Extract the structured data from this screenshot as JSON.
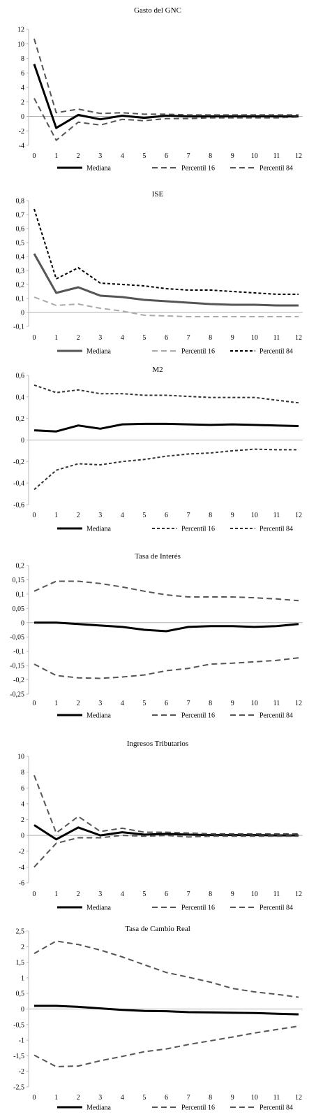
{
  "chart_data": [
    {
      "type": "line",
      "title": "Gasto del GNC",
      "x": [
        0,
        1,
        2,
        3,
        4,
        5,
        6,
        7,
        8,
        9,
        10,
        11,
        12
      ],
      "ylim": [
        -4,
        12
      ],
      "yticks": [
        -4,
        -2,
        0,
        2,
        4,
        6,
        8,
        10,
        12
      ],
      "ytick_labels": [
        "-4",
        "-2",
        "0",
        "2",
        "4",
        "6",
        "8",
        "10",
        "12"
      ],
      "series": [
        {
          "name": "Mediana",
          "style": "solid",
          "color": "#000000",
          "values": [
            7.2,
            -1.6,
            0.2,
            -0.4,
            0.1,
            -0.2,
            0.1,
            0.0,
            0.0,
            0.0,
            0.0,
            0.0,
            0.0
          ]
        },
        {
          "name": "Percentil 16",
          "style": "dashed",
          "color": "#555555",
          "values": [
            2.5,
            -3.3,
            -0.8,
            -1.2,
            -0.4,
            -0.6,
            -0.3,
            -0.3,
            -0.2,
            -0.2,
            -0.2,
            -0.2,
            -0.1
          ]
        },
        {
          "name": "Percentil 84",
          "style": "dashed",
          "color": "#555555",
          "values": [
            10.7,
            0.5,
            1.0,
            0.4,
            0.5,
            0.3,
            0.3,
            0.2,
            0.2,
            0.2,
            0.2,
            0.2,
            0.2
          ]
        }
      ]
    },
    {
      "type": "line",
      "title": "ISE",
      "x": [
        0,
        1,
        2,
        3,
        4,
        5,
        6,
        7,
        8,
        9,
        10,
        11,
        12
      ],
      "ylim": [
        -0.1,
        0.8
      ],
      "yticks": [
        -0.1,
        0,
        0.1,
        0.2,
        0.3,
        0.4,
        0.5,
        0.6,
        0.7,
        0.8
      ],
      "ytick_labels": [
        "-0,1",
        "0",
        "0,1",
        "0,2",
        "0,3",
        "0,4",
        "0,5",
        "0,6",
        "0,7",
        "0,8"
      ],
      "series": [
        {
          "name": "Mediana",
          "style": "solid",
          "color": "#555555",
          "values": [
            0.42,
            0.14,
            0.18,
            0.12,
            0.11,
            0.09,
            0.08,
            0.07,
            0.06,
            0.055,
            0.055,
            0.05,
            0.05
          ]
        },
        {
          "name": "Percentil 16",
          "style": "dashed",
          "color": "#aaaaaa",
          "values": [
            0.11,
            0.05,
            0.06,
            0.03,
            0.01,
            -0.02,
            -0.025,
            -0.03,
            -0.03,
            -0.03,
            -0.03,
            -0.03,
            -0.03
          ]
        },
        {
          "name": "Percentil 84",
          "style": "dotted",
          "color": "#000000",
          "values": [
            0.74,
            0.24,
            0.32,
            0.21,
            0.2,
            0.19,
            0.17,
            0.16,
            0.16,
            0.15,
            0.14,
            0.13,
            0.13
          ]
        }
      ]
    },
    {
      "type": "line",
      "title": "M2",
      "x": [
        0,
        1,
        2,
        3,
        4,
        5,
        6,
        7,
        8,
        9,
        10,
        11,
        12
      ],
      "ylim": [
        -0.6,
        0.6
      ],
      "yticks": [
        -0.6,
        -0.4,
        -0.2,
        0,
        0.2,
        0.4,
        0.6
      ],
      "ytick_labels": [
        "-0,6",
        "-0,4",
        "-0,2",
        "0",
        "0,2",
        "0,4",
        "0,6"
      ],
      "series": [
        {
          "name": "Mediana",
          "style": "solid",
          "color": "#000000",
          "values": [
            0.09,
            0.08,
            0.135,
            0.105,
            0.145,
            0.15,
            0.15,
            0.145,
            0.14,
            0.145,
            0.14,
            0.135,
            0.13
          ]
        },
        {
          "name": "Percentil 16",
          "style": "dotted",
          "color": "#333333",
          "values": [
            -0.46,
            -0.28,
            -0.22,
            -0.23,
            -0.2,
            -0.18,
            -0.15,
            -0.13,
            -0.12,
            -0.1,
            -0.085,
            -0.09,
            -0.09
          ]
        },
        {
          "name": "Percentil 84",
          "style": "dotted",
          "color": "#333333",
          "values": [
            0.51,
            0.44,
            0.465,
            0.43,
            0.43,
            0.415,
            0.415,
            0.405,
            0.395,
            0.395,
            0.395,
            0.37,
            0.345
          ]
        }
      ]
    },
    {
      "type": "line",
      "title": "Tasa de Interés",
      "x": [
        0,
        1,
        2,
        3,
        4,
        5,
        6,
        7,
        8,
        9,
        10,
        11,
        12
      ],
      "ylim": [
        -0.25,
        0.2
      ],
      "yticks": [
        -0.25,
        -0.2,
        -0.15,
        -0.1,
        -0.05,
        0,
        0.05,
        0.1,
        0.15,
        0.2
      ],
      "ytick_labels": [
        "-0,25",
        "-0,2",
        "-0,15",
        "-0,1",
        "-0,05",
        "0",
        "0,05",
        "0,1",
        "0,15",
        "0,2"
      ],
      "series": [
        {
          "name": "Mediana",
          "style": "solid",
          "color": "#000000",
          "values": [
            0.0,
            0.0,
            -0.005,
            -0.01,
            -0.015,
            -0.025,
            -0.03,
            -0.015,
            -0.012,
            -0.012,
            -0.015,
            -0.012,
            -0.005
          ]
        },
        {
          "name": "Percentil 16",
          "style": "dashed",
          "color": "#555555",
          "values": [
            -0.145,
            -0.185,
            -0.193,
            -0.195,
            -0.19,
            -0.183,
            -0.168,
            -0.16,
            -0.145,
            -0.142,
            -0.137,
            -0.132,
            -0.123
          ]
        },
        {
          "name": "Percentil 84",
          "style": "dashed",
          "color": "#555555",
          "values": [
            0.11,
            0.145,
            0.145,
            0.137,
            0.125,
            0.11,
            0.097,
            0.09,
            0.09,
            0.09,
            0.087,
            0.083,
            0.077
          ]
        }
      ]
    },
    {
      "type": "line",
      "title": "Ingresos Tributarios",
      "x": [
        0,
        1,
        2,
        3,
        4,
        5,
        6,
        7,
        8,
        9,
        10,
        11,
        12
      ],
      "ylim": [
        -6,
        10
      ],
      "yticks": [
        -6,
        -4,
        -2,
        0,
        2,
        4,
        6,
        8,
        10
      ],
      "ytick_labels": [
        "-6",
        "-4",
        "-2",
        "0",
        "2",
        "4",
        "6",
        "8",
        "10"
      ],
      "series": [
        {
          "name": "Mediana",
          "style": "solid",
          "color": "#000000",
          "values": [
            1.3,
            -0.5,
            1.0,
            0.0,
            0.4,
            0.1,
            0.2,
            0.1,
            0.05,
            0.05,
            0.05,
            0.0,
            0.0
          ]
        },
        {
          "name": "Percentil 16",
          "style": "dashed",
          "color": "#555555",
          "values": [
            -4.0,
            -1.0,
            -0.3,
            -0.3,
            0.0,
            -0.1,
            0.0,
            -0.2,
            -0.1,
            -0.1,
            -0.1,
            -0.1,
            -0.1
          ]
        },
        {
          "name": "Percentil 84",
          "style": "dashed",
          "color": "#555555",
          "values": [
            7.6,
            0.3,
            2.4,
            0.5,
            0.9,
            0.4,
            0.4,
            0.3,
            0.2,
            0.2,
            0.2,
            0.2,
            0.2
          ]
        }
      ]
    },
    {
      "type": "line",
      "title": "Tasa de Cambio Real",
      "x": [
        0,
        1,
        2,
        3,
        4,
        5,
        6,
        7,
        8,
        9,
        10,
        11,
        12
      ],
      "ylim": [
        -2.5,
        2.5
      ],
      "yticks": [
        -2.5,
        -2,
        -1.5,
        -1,
        -0.5,
        0,
        0.5,
        1,
        1.5,
        2,
        2.5
      ],
      "ytick_labels": [
        "-2,5",
        "-2",
        "-1,5",
        "-1",
        "-0,5",
        "0",
        "0,5",
        "1",
        "1,5",
        "2",
        "2,5"
      ],
      "series": [
        {
          "name": "Mediana",
          "style": "solid",
          "color": "#000000",
          "values": [
            0.1,
            0.1,
            0.07,
            0.02,
            -0.03,
            -0.06,
            -0.07,
            -0.1,
            -0.11,
            -0.12,
            -0.13,
            -0.15,
            -0.17
          ]
        },
        {
          "name": "Percentil 16",
          "style": "dashed",
          "color": "#555555",
          "values": [
            -1.48,
            -1.85,
            -1.83,
            -1.66,
            -1.52,
            -1.37,
            -1.28,
            -1.14,
            -1.02,
            -0.9,
            -0.77,
            -0.66,
            -0.55
          ]
        },
        {
          "name": "Percentil 84",
          "style": "dashed",
          "color": "#555555",
          "values": [
            1.78,
            2.18,
            2.07,
            1.89,
            1.67,
            1.42,
            1.17,
            1.02,
            0.86,
            0.66,
            0.55,
            0.47,
            0.38
          ]
        }
      ]
    }
  ]
}
